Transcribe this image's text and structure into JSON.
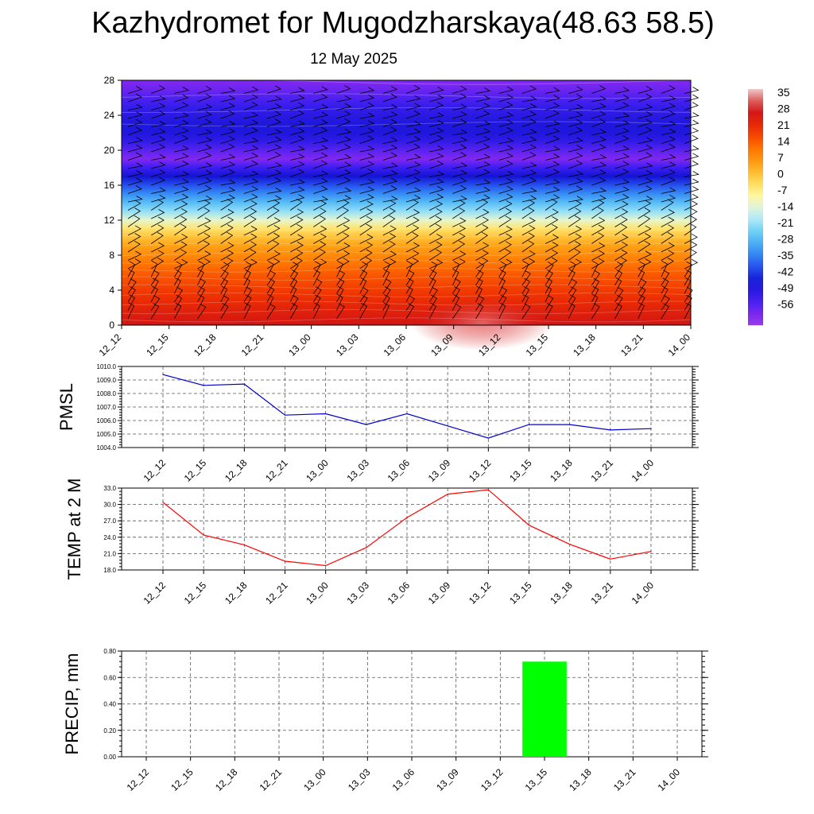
{
  "title": "Kazhydromet for Mugodzharskaya(48.63 58.5)",
  "subtitle": "12 May 2025",
  "chart_data": [
    {
      "type": "heatmap",
      "description_levels": "vertical cross-section of temperature with wind barbs",
      "x_labels": [
        "12_12",
        "12_15",
        "12_18",
        "12_21",
        "13_00",
        "13_03",
        "13_06",
        "13_09",
        "13_12",
        "13_15",
        "13_18",
        "13_21",
        "14_00"
      ],
      "y_ticks": [
        0,
        4,
        8,
        12,
        16,
        20,
        24,
        28
      ],
      "ylim": [
        0,
        28
      ],
      "profile": {
        "level": [
          0,
          1,
          2,
          3,
          4,
          5,
          6,
          7,
          8,
          9,
          10,
          11,
          12,
          13,
          14,
          15,
          16,
          17,
          18,
          19,
          20,
          21,
          22,
          23,
          24,
          25,
          26,
          27,
          28
        ],
        "temperature": [
          28,
          26,
          24,
          22,
          20,
          18,
          16,
          13,
          10,
          7,
          3,
          -2,
          -10,
          -18,
          -24,
          -30,
          -36,
          -42,
          -49,
          -56,
          -52,
          -47,
          -44,
          -44,
          -46,
          -48,
          -51,
          -54,
          -56
        ]
      },
      "colorbar": {
        "labels": [
          "35",
          "28",
          "21",
          "14",
          "7",
          "0",
          "-7",
          "-14",
          "-21",
          "-28",
          "-35",
          "-42",
          "-49",
          "-56"
        ],
        "min": -60,
        "max": 38
      }
    },
    {
      "type": "line",
      "ylabel": "PMSL",
      "x_labels": [
        "12_12",
        "12_15",
        "12_18",
        "12_21",
        "13_00",
        "13_03",
        "13_06",
        "13_09",
        "13_12",
        "13_15",
        "13_18",
        "13_21",
        "14_00"
      ],
      "values": [
        1009.4,
        1008.6,
        1008.7,
        1006.4,
        1006.5,
        1005.7,
        1006.5,
        1005.6,
        1004.7,
        1005.7,
        1005.7,
        1005.3,
        1005.4
      ],
      "y_ticks": [
        "1004.0",
        "1005.0",
        "1006.0",
        "1007.0",
        "1008.0",
        "1009.0",
        "1010.0"
      ],
      "ylim": [
        1004,
        1010
      ],
      "color": "#0000cc"
    },
    {
      "type": "line",
      "ylabel": "TEMP at 2 M",
      "x_labels": [
        "12_12",
        "12_15",
        "12_18",
        "12_21",
        "13_00",
        "13_03",
        "13_06",
        "13_09",
        "13_12",
        "13_15",
        "13_18",
        "13_21",
        "14_00"
      ],
      "values": [
        30.4,
        24.4,
        22.6,
        19.6,
        18.8,
        22.1,
        27.6,
        31.9,
        32.7,
        26.2,
        22.7,
        20.0,
        21.4
      ],
      "y_ticks": [
        "18.0",
        "21.0",
        "24.0",
        "27.0",
        "30.0",
        "33.0"
      ],
      "ylim": [
        18,
        33
      ],
      "color": "#ff0000"
    },
    {
      "type": "bar",
      "ylabel": "PRECIP, mm",
      "x_labels": [
        "12_12",
        "12_15",
        "12_18",
        "12_21",
        "13_00",
        "13_03",
        "13_06",
        "13_09",
        "13_12",
        "13_15",
        "13_18",
        "13_21",
        "14_00"
      ],
      "values": [
        0,
        0,
        0,
        0,
        0,
        0,
        0,
        0,
        0,
        0.72,
        0,
        0,
        0
      ],
      "y_ticks": [
        "0.00",
        "0.20",
        "0.40",
        "0.60",
        "0.80"
      ],
      "ylim": [
        0,
        0.8
      ],
      "color": "#00ff00"
    }
  ]
}
